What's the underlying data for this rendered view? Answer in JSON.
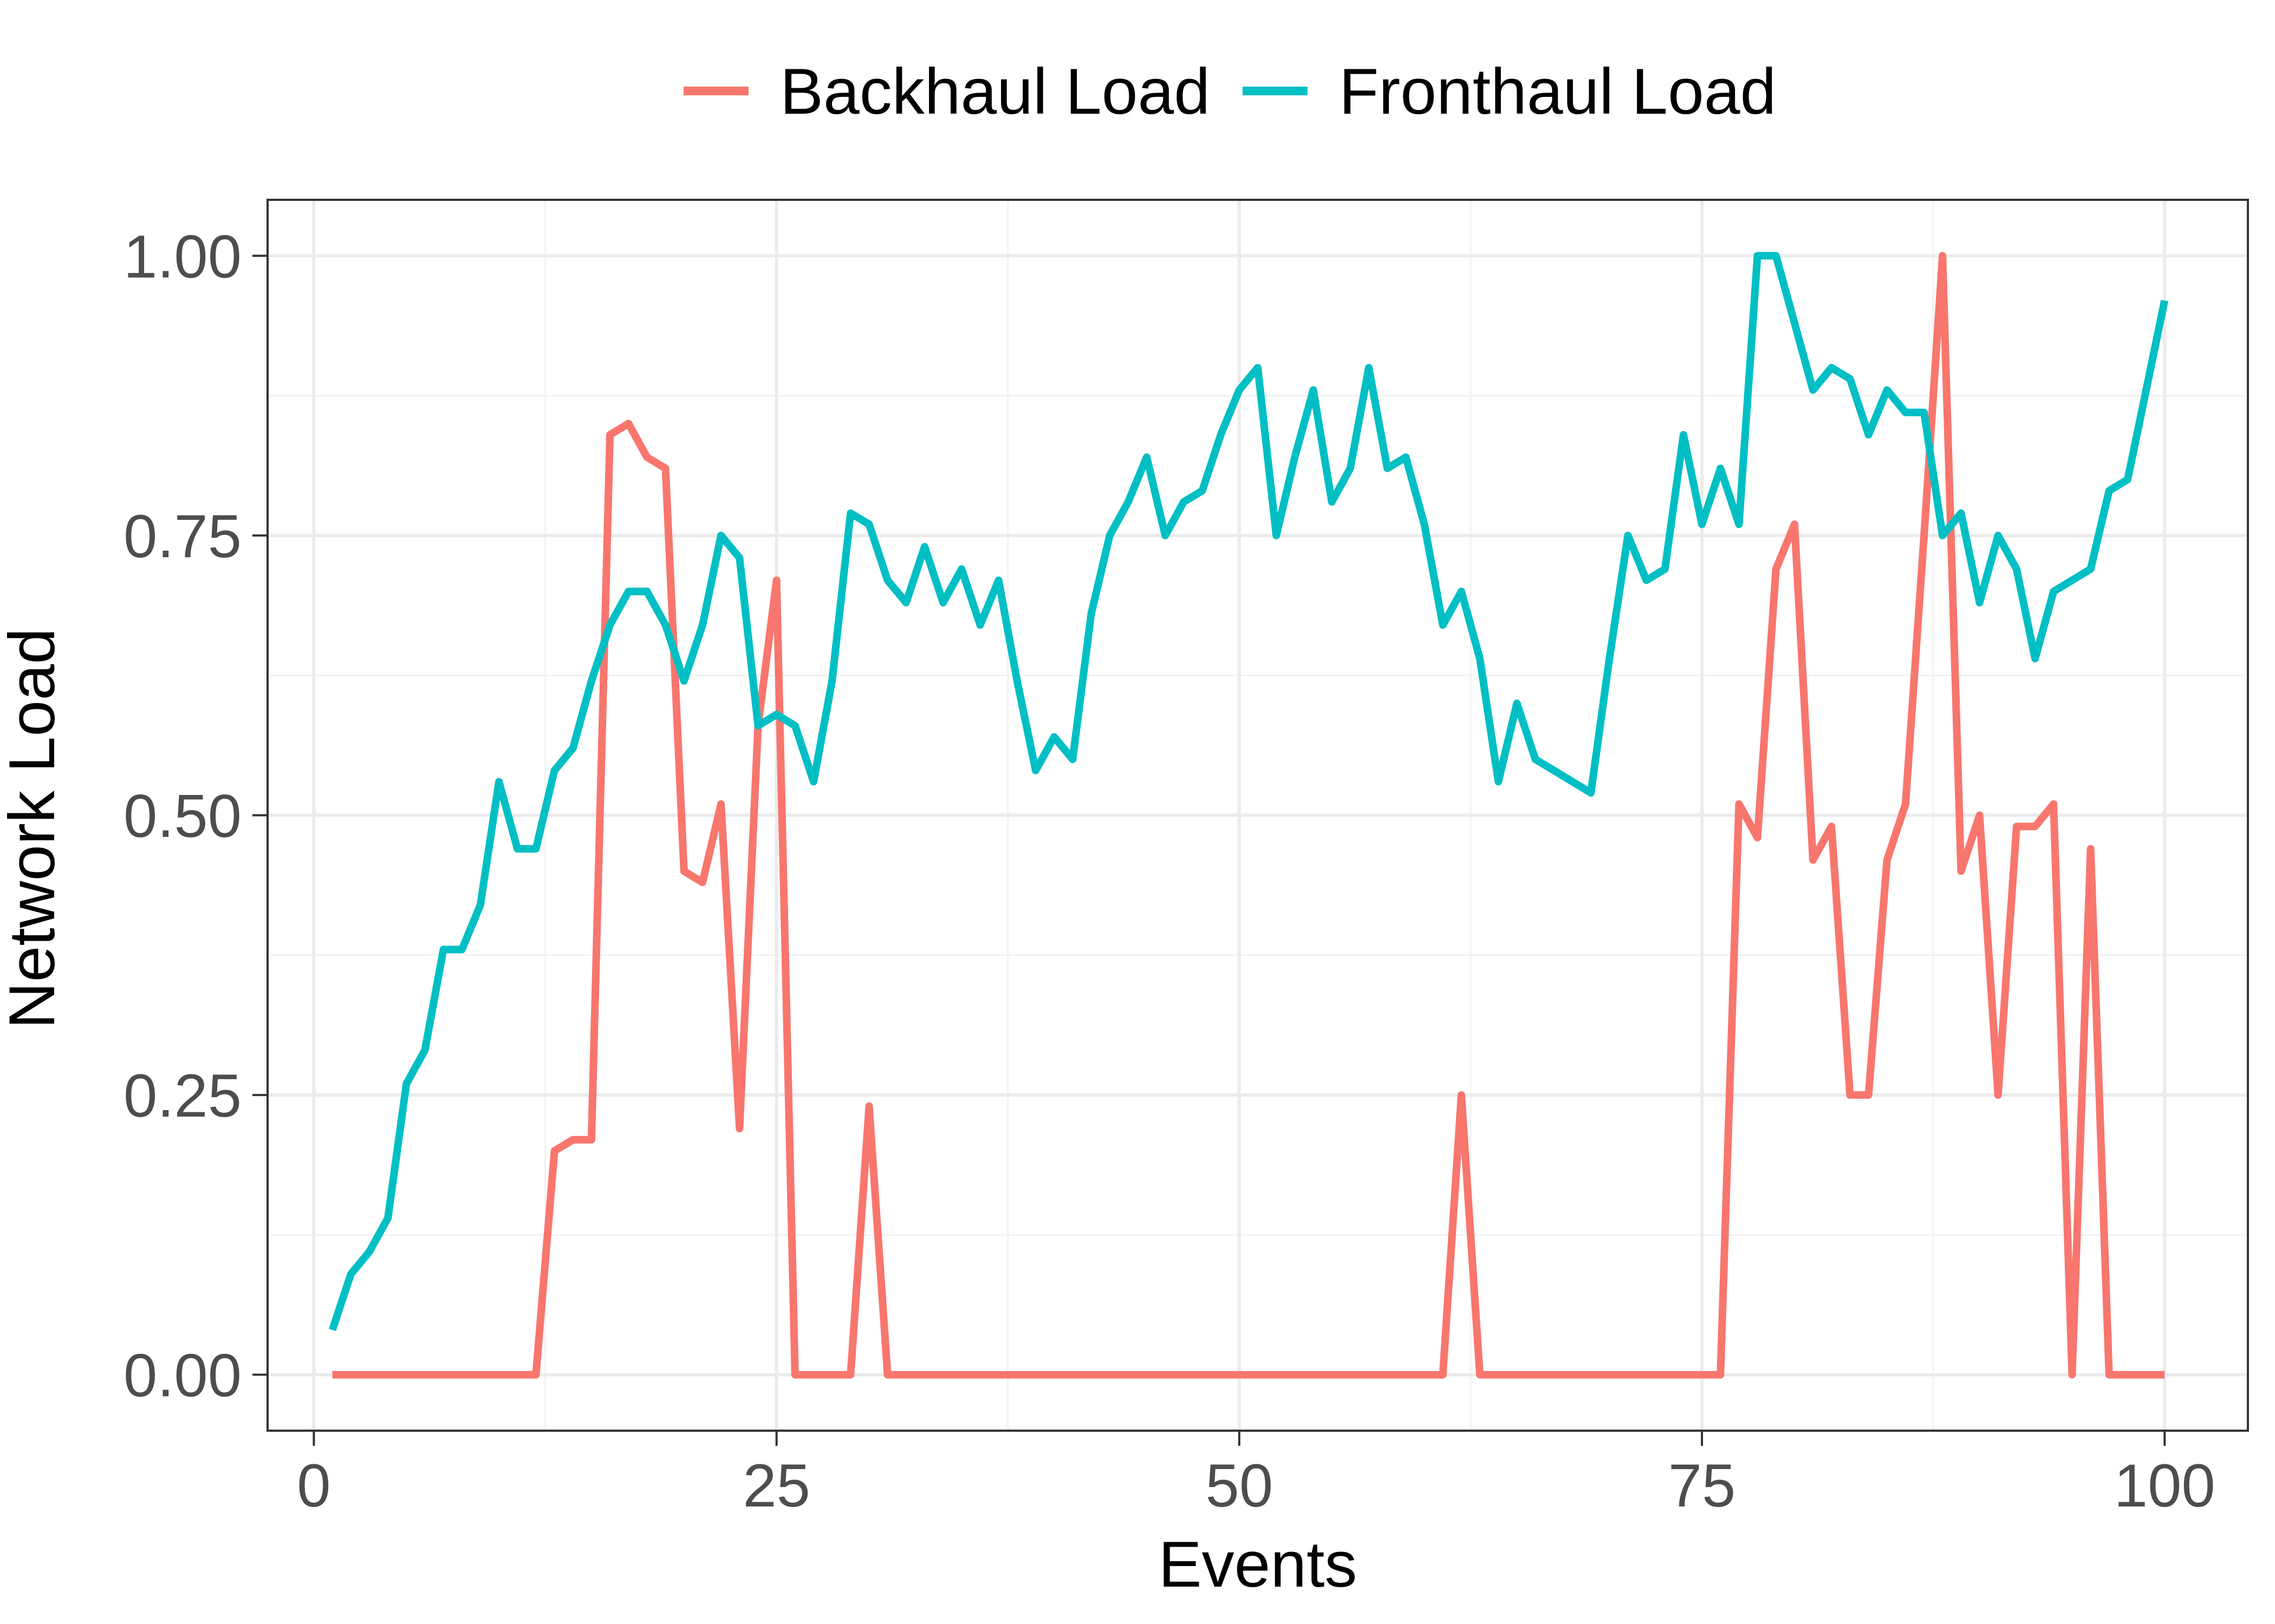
{
  "chart_data": {
    "type": "line",
    "xlabel": "Events",
    "ylabel": "Network Load",
    "xlim": [
      -2.5,
      104.5
    ],
    "ylim": [
      -0.05,
      1.05
    ],
    "x_ticks": [
      0,
      25,
      50,
      75,
      100
    ],
    "x_tick_labels": [
      "0",
      "25",
      "50",
      "75",
      "100"
    ],
    "y_ticks": [
      0,
      0.25,
      0.5,
      0.75,
      1.0
    ],
    "y_tick_labels": [
      "0.00",
      "0.25",
      "0.50",
      "0.75",
      "1.00"
    ],
    "grid": true,
    "legend_position": "top",
    "x": [
      1,
      2,
      3,
      4,
      5,
      6,
      7,
      8,
      9,
      10,
      11,
      12,
      13,
      14,
      15,
      16,
      17,
      18,
      19,
      20,
      21,
      22,
      23,
      24,
      25,
      26,
      27,
      28,
      29,
      30,
      31,
      32,
      33,
      34,
      35,
      36,
      37,
      38,
      39,
      40,
      41,
      42,
      43,
      44,
      45,
      46,
      47,
      48,
      49,
      50,
      51,
      52,
      53,
      54,
      55,
      56,
      57,
      58,
      59,
      60,
      61,
      62,
      63,
      64,
      65,
      66,
      67,
      68,
      69,
      70,
      71,
      72,
      73,
      74,
      75,
      76,
      77,
      78,
      79,
      80,
      81,
      82,
      83,
      84,
      85,
      86,
      87,
      88,
      89,
      90,
      91,
      92,
      93,
      94,
      95,
      96,
      97,
      98,
      99,
      100
    ],
    "series": [
      {
        "name": "Backhaul Load",
        "color": "#F8766D",
        "values": [
          0,
          0,
          0,
          0,
          0,
          0,
          0,
          0,
          0,
          0,
          0,
          0,
          0.2,
          0.21,
          0.21,
          0.84,
          0.85,
          0.82,
          0.81,
          0.45,
          0.44,
          0.51,
          0.22,
          0.58,
          0.71,
          0,
          0,
          0,
          0,
          0.24,
          0,
          0,
          0,
          0,
          0,
          0,
          0,
          0,
          0,
          0,
          0,
          0,
          0,
          0,
          0,
          0,
          0,
          0,
          0,
          0,
          0,
          0,
          0,
          0,
          0,
          0,
          0,
          0,
          0,
          0,
          0,
          0.25,
          0,
          0,
          0,
          0,
          0,
          0,
          0,
          0,
          0,
          0,
          0,
          0,
          0,
          0,
          0.51,
          0.48,
          0.72,
          0.76,
          0.46,
          0.49,
          0.25,
          0.25,
          0.46,
          0.51,
          0.75,
          1.0,
          0.45,
          0.5,
          0.25,
          0.49,
          0.49,
          0.51,
          0,
          0.47,
          0,
          0,
          0,
          0
        ]
      },
      {
        "name": "Fronthaul Load",
        "color": "#00BFC4",
        "values": [
          0.04,
          0.09,
          0.11,
          0.14,
          0.26,
          0.29,
          0.38,
          0.38,
          0.42,
          0.53,
          0.47,
          0.47,
          0.54,
          0.56,
          0.62,
          0.67,
          0.7,
          0.7,
          0.67,
          0.62,
          0.67,
          0.75,
          0.73,
          0.58,
          0.59,
          0.58,
          0.53,
          0.62,
          0.77,
          0.76,
          0.71,
          0.69,
          0.74,
          0.69,
          0.72,
          0.67,
          0.71,
          0.62,
          0.54,
          0.57,
          0.55,
          0.68,
          0.75,
          0.78,
          0.82,
          0.75,
          0.78,
          0.79,
          0.84,
          0.88,
          0.9,
          0.75,
          0.82,
          0.88,
          0.78,
          0.81,
          0.9,
          0.81,
          0.82,
          0.76,
          0.67,
          0.7,
          0.64,
          0.53,
          0.6,
          0.55,
          0.54,
          0.53,
          0.52,
          0.64,
          0.75,
          0.71,
          0.72,
          0.84,
          0.76,
          0.81,
          0.76,
          1.0,
          1.0,
          0.94,
          0.88,
          0.9,
          0.89,
          0.84,
          0.88,
          0.86,
          0.86,
          0.75,
          0.77,
          0.69,
          0.75,
          0.72,
          0.64,
          0.7,
          0.71,
          0.72,
          0.79,
          0.8,
          0.88,
          0.96
        ]
      }
    ]
  }
}
